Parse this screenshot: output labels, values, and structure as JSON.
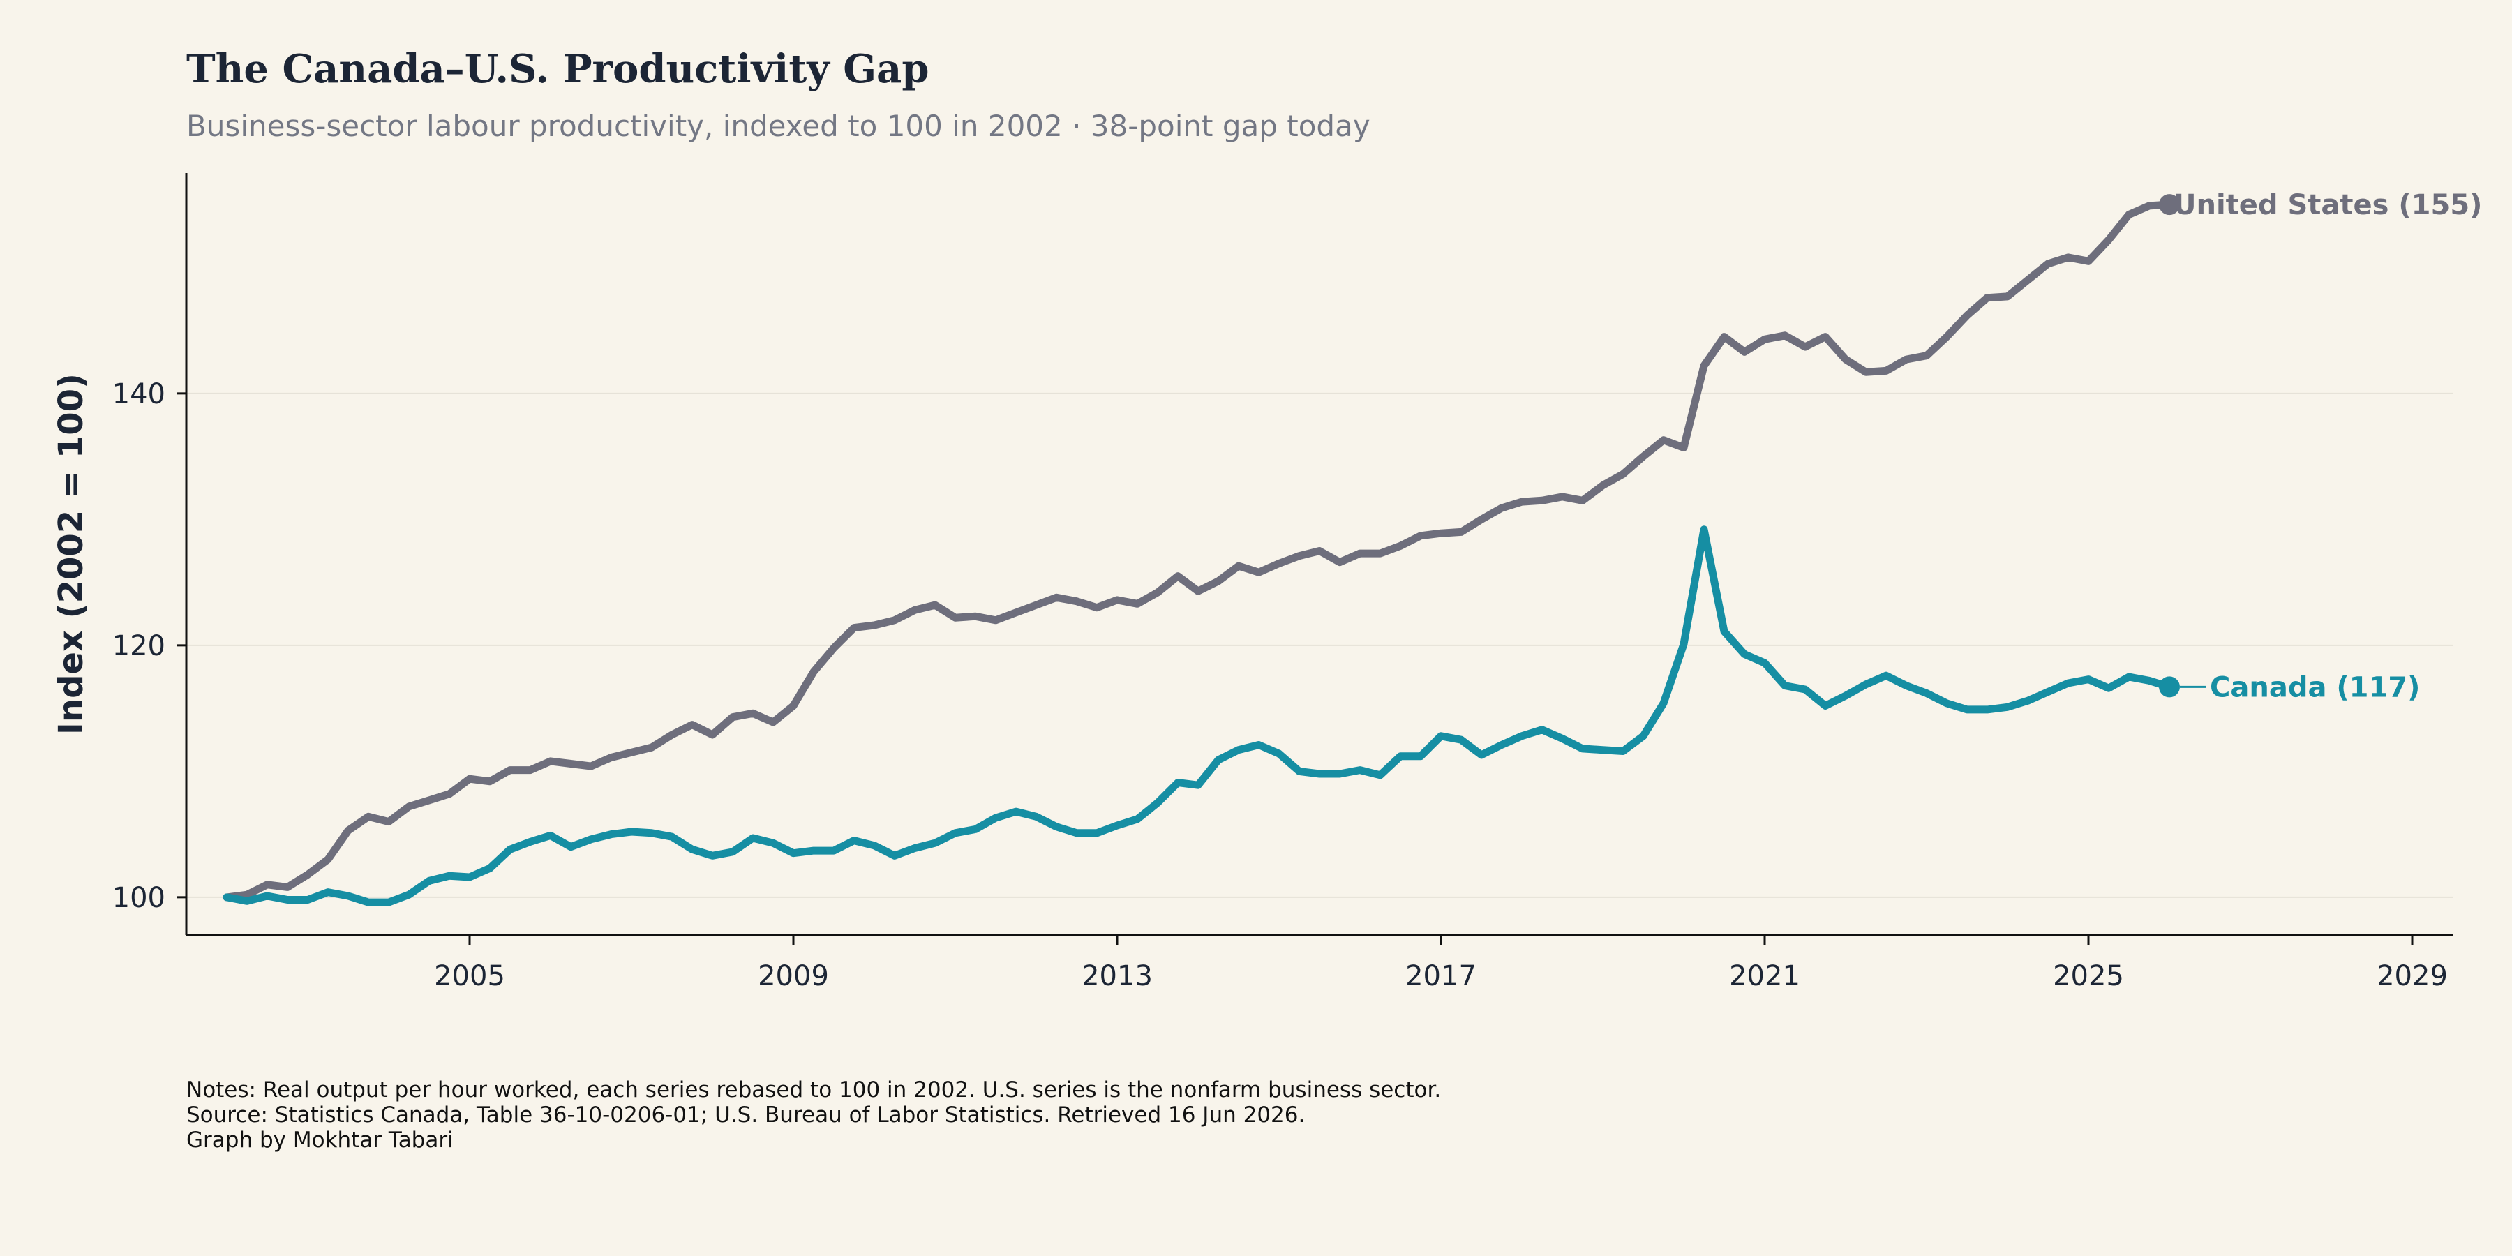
{
  "header": {
    "title": "The Canada–U.S. Productivity Gap",
    "subtitle": "Business-sector labour productivity, indexed to 100 in 2002 · 38-point gap today"
  },
  "footer": {
    "notes": "Notes: Real output per hour worked, each series rebased to 100 in 2002. U.S. series is the nonfarm business sector.",
    "source": "Source: Statistics Canada, Table 36-10-0206-01; U.S. Bureau of Labor Statistics. Retrieved 16 Jun 2026.",
    "credit": "Graph by Mokhtar Tabari"
  },
  "colors": {
    "background": "#f8f4eb",
    "us": "#6e6e7c",
    "canada": "#168ea3",
    "axis": "#111111",
    "grid": "#e6e2d8"
  },
  "chart_data": {
    "type": "line",
    "ylabel": "Index (2002 = 100)",
    "xlabel": "",
    "xlim": [
      2001.5,
      2029.5
    ],
    "ylim": [
      97,
      157.5
    ],
    "x_ticks": [
      2005,
      2009,
      2013,
      2017,
      2021,
      2025,
      2029
    ],
    "y_ticks": [
      100,
      120,
      140
    ],
    "grid": "horizontal",
    "legend": "direct labels at line ends",
    "series": [
      {
        "key": "us",
        "end_label": "United States (155)",
        "x_start": 2002.0,
        "x_step": 0.25,
        "values": [
          100.0,
          100.2,
          101.0,
          100.8,
          101.8,
          103.0,
          105.3,
          106.4,
          106.0,
          107.2,
          107.7,
          108.2,
          109.4,
          109.2,
          110.1,
          110.1,
          110.8,
          110.6,
          110.4,
          111.1,
          111.5,
          111.9,
          112.9,
          113.7,
          112.9,
          114.3,
          114.6,
          113.9,
          115.2,
          117.9,
          119.8,
          121.4,
          121.6,
          122.0,
          122.8,
          123.2,
          122.2,
          122.3,
          122.0,
          122.6,
          123.2,
          123.8,
          123.5,
          123.0,
          123.6,
          123.3,
          124.2,
          125.5,
          124.3,
          125.1,
          126.3,
          125.8,
          126.5,
          127.1,
          127.5,
          126.6,
          127.3,
          127.3,
          127.9,
          128.7,
          128.9,
          129.0,
          130.0,
          130.9,
          131.4,
          131.5,
          131.8,
          131.5,
          132.7,
          133.6,
          135.0,
          136.3,
          135.7,
          142.2,
          144.5,
          143.3,
          144.3,
          144.6,
          143.7,
          144.5,
          142.7,
          141.7,
          141.8,
          142.7,
          143.0,
          144.5,
          146.2,
          147.6,
          147.7,
          149.0,
          150.3,
          150.8,
          150.5,
          152.2,
          154.2,
          154.9,
          155.0
        ]
      },
      {
        "key": "canada",
        "end_label": "Canada (117)",
        "x_start": 2002.0,
        "x_step": 0.25,
        "values": [
          100.0,
          99.7,
          100.1,
          99.8,
          99.8,
          100.4,
          100.1,
          99.6,
          99.6,
          100.2,
          101.3,
          101.7,
          101.6,
          102.3,
          103.8,
          104.4,
          104.9,
          104.0,
          104.6,
          105.0,
          105.2,
          105.1,
          104.8,
          103.8,
          103.3,
          103.6,
          104.7,
          104.3,
          103.5,
          103.7,
          103.7,
          104.5,
          104.1,
          103.3,
          103.9,
          104.3,
          105.1,
          105.4,
          106.3,
          106.8,
          106.4,
          105.6,
          105.1,
          105.1,
          105.7,
          106.2,
          107.5,
          109.1,
          108.9,
          110.9,
          111.7,
          112.1,
          111.4,
          110.0,
          109.8,
          109.8,
          110.1,
          109.7,
          111.2,
          111.2,
          112.8,
          112.5,
          111.3,
          112.1,
          112.8,
          113.3,
          112.6,
          111.8,
          111.7,
          111.6,
          112.8,
          115.4,
          120.1,
          129.2,
          121.1,
          119.3,
          118.6,
          116.8,
          116.5,
          115.2,
          116.0,
          116.9,
          117.6,
          116.8,
          116.2,
          115.4,
          114.9,
          114.9,
          115.1,
          115.6,
          116.3,
          117.0,
          117.3,
          116.6,
          117.5,
          117.2,
          116.7
        ]
      }
    ]
  }
}
